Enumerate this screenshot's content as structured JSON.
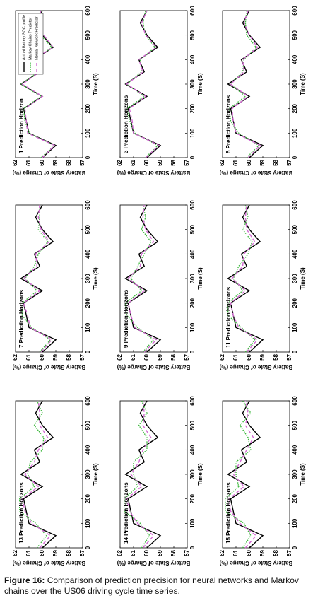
{
  "chart_data": [
    {
      "type": "line",
      "title": "1 Prediction Horizon",
      "xlabel": "Time (S)",
      "ylabel": "Battery State of Charge (%)",
      "xlim": [
        0,
        600
      ],
      "ylim": [
        57,
        62
      ],
      "xticks": [
        0,
        100,
        200,
        300,
        400,
        500,
        600
      ],
      "yticks": [
        57,
        58,
        59,
        60,
        61,
        62
      ],
      "legend": true,
      "x": [
        0,
        50,
        100,
        150,
        200,
        250,
        300,
        350,
        400,
        450,
        500,
        550,
        600
      ],
      "series": [
        {
          "name": "Actual Battery SOC profile",
          "color": "#000000",
          "values": [
            60.0,
            59.0,
            61.0,
            61.2,
            61.4,
            60.0,
            61.6,
            60.2,
            60.6,
            59.2,
            60.0,
            60.5,
            60.0
          ]
        },
        {
          "name": "Markov Chains Predictor",
          "color": "#3cb83c",
          "values": [
            60.1,
            59.1,
            61.0,
            61.3,
            61.4,
            60.1,
            61.6,
            60.3,
            60.5,
            59.3,
            60.1,
            60.4,
            60.0
          ]
        },
        {
          "name": "Neural Network Predictor",
          "color": "#d36ad3",
          "values": [
            60.0,
            59.1,
            61.1,
            61.2,
            61.3,
            60.0,
            61.5,
            60.2,
            60.7,
            59.2,
            59.9,
            60.5,
            60.1
          ]
        }
      ]
    },
    {
      "type": "line",
      "title": "3 Prediction Horizons",
      "xlabel": "Time (S)",
      "ylabel": "Battery State of Charge (%)",
      "xlim": [
        0,
        600
      ],
      "ylim": [
        57,
        62
      ],
      "xticks": [
        0,
        100,
        200,
        300,
        400,
        500,
        600
      ],
      "yticks": [
        57,
        58,
        59,
        60,
        61,
        62
      ],
      "x": [
        0,
        50,
        100,
        150,
        200,
        250,
        300,
        350,
        400,
        450,
        500,
        550,
        600
      ],
      "series": [
        {
          "color": "#000000",
          "values": [
            60.0,
            59.0,
            61.0,
            61.2,
            61.4,
            60.0,
            61.6,
            60.2,
            60.6,
            59.2,
            60.0,
            60.5,
            60.0
          ]
        },
        {
          "color": "#3cb83c",
          "values": [
            60.1,
            59.2,
            60.9,
            61.3,
            61.5,
            60.2,
            61.5,
            60.4,
            60.5,
            59.4,
            60.1,
            60.3,
            60.1
          ]
        },
        {
          "color": "#d36ad3",
          "values": [
            60.1,
            59.1,
            61.0,
            61.1,
            61.3,
            60.1,
            61.5,
            60.3,
            60.6,
            59.3,
            60.1,
            60.4,
            60.0
          ]
        }
      ]
    },
    {
      "type": "line",
      "title": "5 Prediction Horizons",
      "xlabel": "Time (S)",
      "ylabel": "Battery State of Charge (%)",
      "xlim": [
        0,
        600
      ],
      "ylim": [
        57,
        62
      ],
      "xticks": [
        0,
        100,
        200,
        300,
        400,
        500,
        600
      ],
      "yticks": [
        57,
        58,
        59,
        60,
        61,
        62
      ],
      "x": [
        0,
        50,
        100,
        150,
        200,
        250,
        300,
        350,
        400,
        450,
        500,
        550,
        600
      ],
      "series": [
        {
          "color": "#000000",
          "values": [
            60.0,
            59.0,
            61.0,
            61.2,
            61.4,
            60.0,
            61.6,
            60.2,
            60.6,
            59.2,
            60.0,
            60.5,
            60.0
          ]
        },
        {
          "color": "#3cb83c",
          "values": [
            60.2,
            59.3,
            60.8,
            61.4,
            61.5,
            60.3,
            61.4,
            60.5,
            60.4,
            59.5,
            60.2,
            60.3,
            60.2
          ]
        },
        {
          "color": "#d36ad3",
          "values": [
            60.1,
            59.2,
            61.0,
            61.2,
            61.3,
            60.1,
            61.4,
            60.4,
            60.5,
            59.4,
            60.0,
            60.4,
            60.1
          ]
        }
      ]
    },
    {
      "type": "line",
      "title": "7 Prediction Horizons",
      "xlabel": "Time (S)",
      "ylabel": "Battery State of Charge (%)",
      "xlim": [
        0,
        600
      ],
      "ylim": [
        57,
        62
      ],
      "xticks": [
        0,
        100,
        200,
        300,
        400,
        500,
        600
      ],
      "yticks": [
        57,
        58,
        59,
        60,
        61,
        62
      ],
      "x": [
        0,
        50,
        100,
        150,
        200,
        250,
        300,
        350,
        400,
        450,
        500,
        550,
        600
      ],
      "series": [
        {
          "color": "#000000",
          "values": [
            60.0,
            59.0,
            61.0,
            61.2,
            61.4,
            60.0,
            61.6,
            60.2,
            60.6,
            59.2,
            60.0,
            60.5,
            60.0
          ]
        },
        {
          "color": "#3cb83c",
          "values": [
            60.2,
            59.4,
            60.8,
            61.5,
            61.5,
            60.4,
            61.3,
            60.6,
            60.3,
            59.6,
            60.3,
            60.2,
            60.2
          ]
        },
        {
          "color": "#d36ad3",
          "values": [
            60.1,
            59.3,
            60.9,
            61.1,
            61.4,
            60.2,
            61.4,
            60.4,
            60.5,
            59.5,
            60.1,
            60.3,
            60.2
          ]
        }
      ]
    },
    {
      "type": "line",
      "title": "9 Prediction Horizons",
      "xlabel": "Time (S)",
      "ylabel": "Battery State of Charge (%)",
      "xlim": [
        0,
        600
      ],
      "ylim": [
        57,
        62
      ],
      "xticks": [
        0,
        100,
        200,
        300,
        400,
        500,
        600
      ],
      "yticks": [
        57,
        58,
        59,
        60,
        61,
        62
      ],
      "x": [
        0,
        50,
        100,
        150,
        200,
        250,
        300,
        350,
        400,
        450,
        500,
        550,
        600
      ],
      "series": [
        {
          "color": "#000000",
          "values": [
            60.0,
            59.0,
            61.0,
            61.2,
            61.4,
            60.0,
            61.6,
            60.2,
            60.6,
            59.2,
            60.0,
            60.5,
            60.0
          ]
        },
        {
          "color": "#3cb83c",
          "values": [
            60.3,
            59.5,
            60.7,
            61.5,
            61.6,
            60.4,
            61.2,
            60.7,
            60.2,
            59.7,
            60.4,
            60.1,
            60.3
          ]
        },
        {
          "color": "#d36ad3",
          "values": [
            60.2,
            59.3,
            60.9,
            61.2,
            61.4,
            60.2,
            61.4,
            60.5,
            60.4,
            59.5,
            60.1,
            60.3,
            60.2
          ]
        }
      ]
    },
    {
      "type": "line",
      "title": "11 Prediction Horizons",
      "xlabel": "Time (S)",
      "ylabel": "Battery State of Charge (%)",
      "xlim": [
        0,
        600
      ],
      "ylim": [
        57,
        62
      ],
      "xticks": [
        0,
        100,
        200,
        300,
        400,
        500,
        600
      ],
      "yticks": [
        57,
        58,
        59,
        60,
        61,
        62
      ],
      "x": [
        0,
        50,
        100,
        150,
        200,
        250,
        300,
        350,
        400,
        450,
        500,
        550,
        600
      ],
      "series": [
        {
          "color": "#000000",
          "values": [
            60.0,
            59.0,
            61.0,
            61.2,
            61.4,
            60.0,
            61.6,
            60.2,
            60.6,
            59.2,
            60.0,
            60.5,
            60.0
          ]
        },
        {
          "color": "#3cb83c",
          "values": [
            60.3,
            59.6,
            60.6,
            61.6,
            61.6,
            60.5,
            61.2,
            60.8,
            60.1,
            59.8,
            60.5,
            60.1,
            60.3
          ]
        },
        {
          "color": "#d36ad3",
          "values": [
            60.2,
            59.4,
            60.8,
            61.2,
            61.4,
            60.3,
            61.3,
            60.5,
            60.4,
            59.6,
            60.2,
            60.3,
            60.2
          ]
        }
      ]
    },
    {
      "type": "line",
      "title": "13 Prediction Horizons",
      "xlabel": "Time (S)",
      "ylabel": "Battery State of Charge (%)",
      "xlim": [
        0,
        600
      ],
      "ylim": [
        57,
        62
      ],
      "xticks": [
        0,
        100,
        200,
        300,
        400,
        500,
        600
      ],
      "yticks": [
        57,
        58,
        59,
        60,
        61,
        62
      ],
      "x": [
        0,
        50,
        100,
        150,
        200,
        250,
        300,
        350,
        400,
        450,
        500,
        550,
        600
      ],
      "series": [
        {
          "color": "#000000",
          "values": [
            60.0,
            59.0,
            61.0,
            61.2,
            61.4,
            60.0,
            61.6,
            60.2,
            60.6,
            59.2,
            60.0,
            60.5,
            60.0
          ]
        },
        {
          "color": "#3cb83c",
          "values": [
            60.4,
            59.7,
            60.5,
            61.7,
            61.7,
            60.6,
            61.1,
            60.9,
            60.0,
            59.9,
            60.6,
            60.0,
            60.4
          ]
        },
        {
          "color": "#d36ad3",
          "values": [
            60.2,
            59.4,
            60.8,
            61.3,
            61.5,
            60.3,
            61.3,
            60.6,
            60.3,
            59.6,
            60.2,
            60.2,
            60.3
          ]
        }
      ]
    },
    {
      "type": "line",
      "title": "14 Prediction Horizons",
      "xlabel": "Time (S)",
      "ylabel": "Battery State of Charge (%)",
      "xlim": [
        0,
        600
      ],
      "ylim": [
        57,
        62
      ],
      "xticks": [
        0,
        100,
        200,
        300,
        400,
        500,
        600
      ],
      "yticks": [
        57,
        58,
        59,
        60,
        61,
        62
      ],
      "x": [
        0,
        50,
        100,
        150,
        200,
        250,
        300,
        350,
        400,
        450,
        500,
        550,
        600
      ],
      "series": [
        {
          "color": "#000000",
          "values": [
            60.0,
            59.0,
            61.0,
            61.2,
            61.4,
            60.0,
            61.6,
            60.2,
            60.6,
            59.2,
            60.0,
            60.5,
            60.0
          ]
        },
        {
          "color": "#3cb83c",
          "values": [
            60.4,
            59.8,
            60.5,
            61.7,
            61.7,
            60.7,
            61.0,
            61.0,
            60.0,
            60.0,
            60.6,
            60.0,
            60.4
          ]
        },
        {
          "color": "#d36ad3",
          "values": [
            60.3,
            59.5,
            60.7,
            61.3,
            61.5,
            60.4,
            61.2,
            60.6,
            60.3,
            59.7,
            60.3,
            60.2,
            60.3
          ]
        }
      ]
    },
    {
      "type": "line",
      "title": "15 Prediction Horizons",
      "xlabel": "Time (S)",
      "ylabel": "Battery State of Charge (%)",
      "xlim": [
        0,
        600
      ],
      "ylim": [
        57,
        62
      ],
      "xticks": [
        0,
        100,
        200,
        300,
        400,
        500,
        600
      ],
      "yticks": [
        57,
        58,
        59,
        60,
        61,
        62
      ],
      "x": [
        0,
        50,
        100,
        150,
        200,
        250,
        300,
        350,
        400,
        450,
        500,
        550,
        600
      ],
      "series": [
        {
          "color": "#000000",
          "values": [
            60.0,
            59.0,
            61.0,
            61.2,
            61.4,
            60.0,
            61.6,
            60.2,
            60.6,
            59.2,
            60.0,
            60.5,
            60.0
          ]
        },
        {
          "color": "#3cb83c",
          "values": [
            60.5,
            59.9,
            60.4,
            61.8,
            61.8,
            60.8,
            61.0,
            61.0,
            59.9,
            60.1,
            60.7,
            59.9,
            60.5
          ]
        },
        {
          "color": "#d36ad3",
          "values": [
            60.3,
            59.5,
            60.7,
            61.4,
            61.5,
            60.4,
            61.2,
            60.7,
            60.2,
            59.7,
            60.3,
            60.1,
            60.3
          ]
        }
      ]
    }
  ],
  "caption": {
    "label": "Figure 16:",
    "text": "Comparison of prediction precision for neural networks and Markov chains over the US06 driving cycle time series."
  }
}
